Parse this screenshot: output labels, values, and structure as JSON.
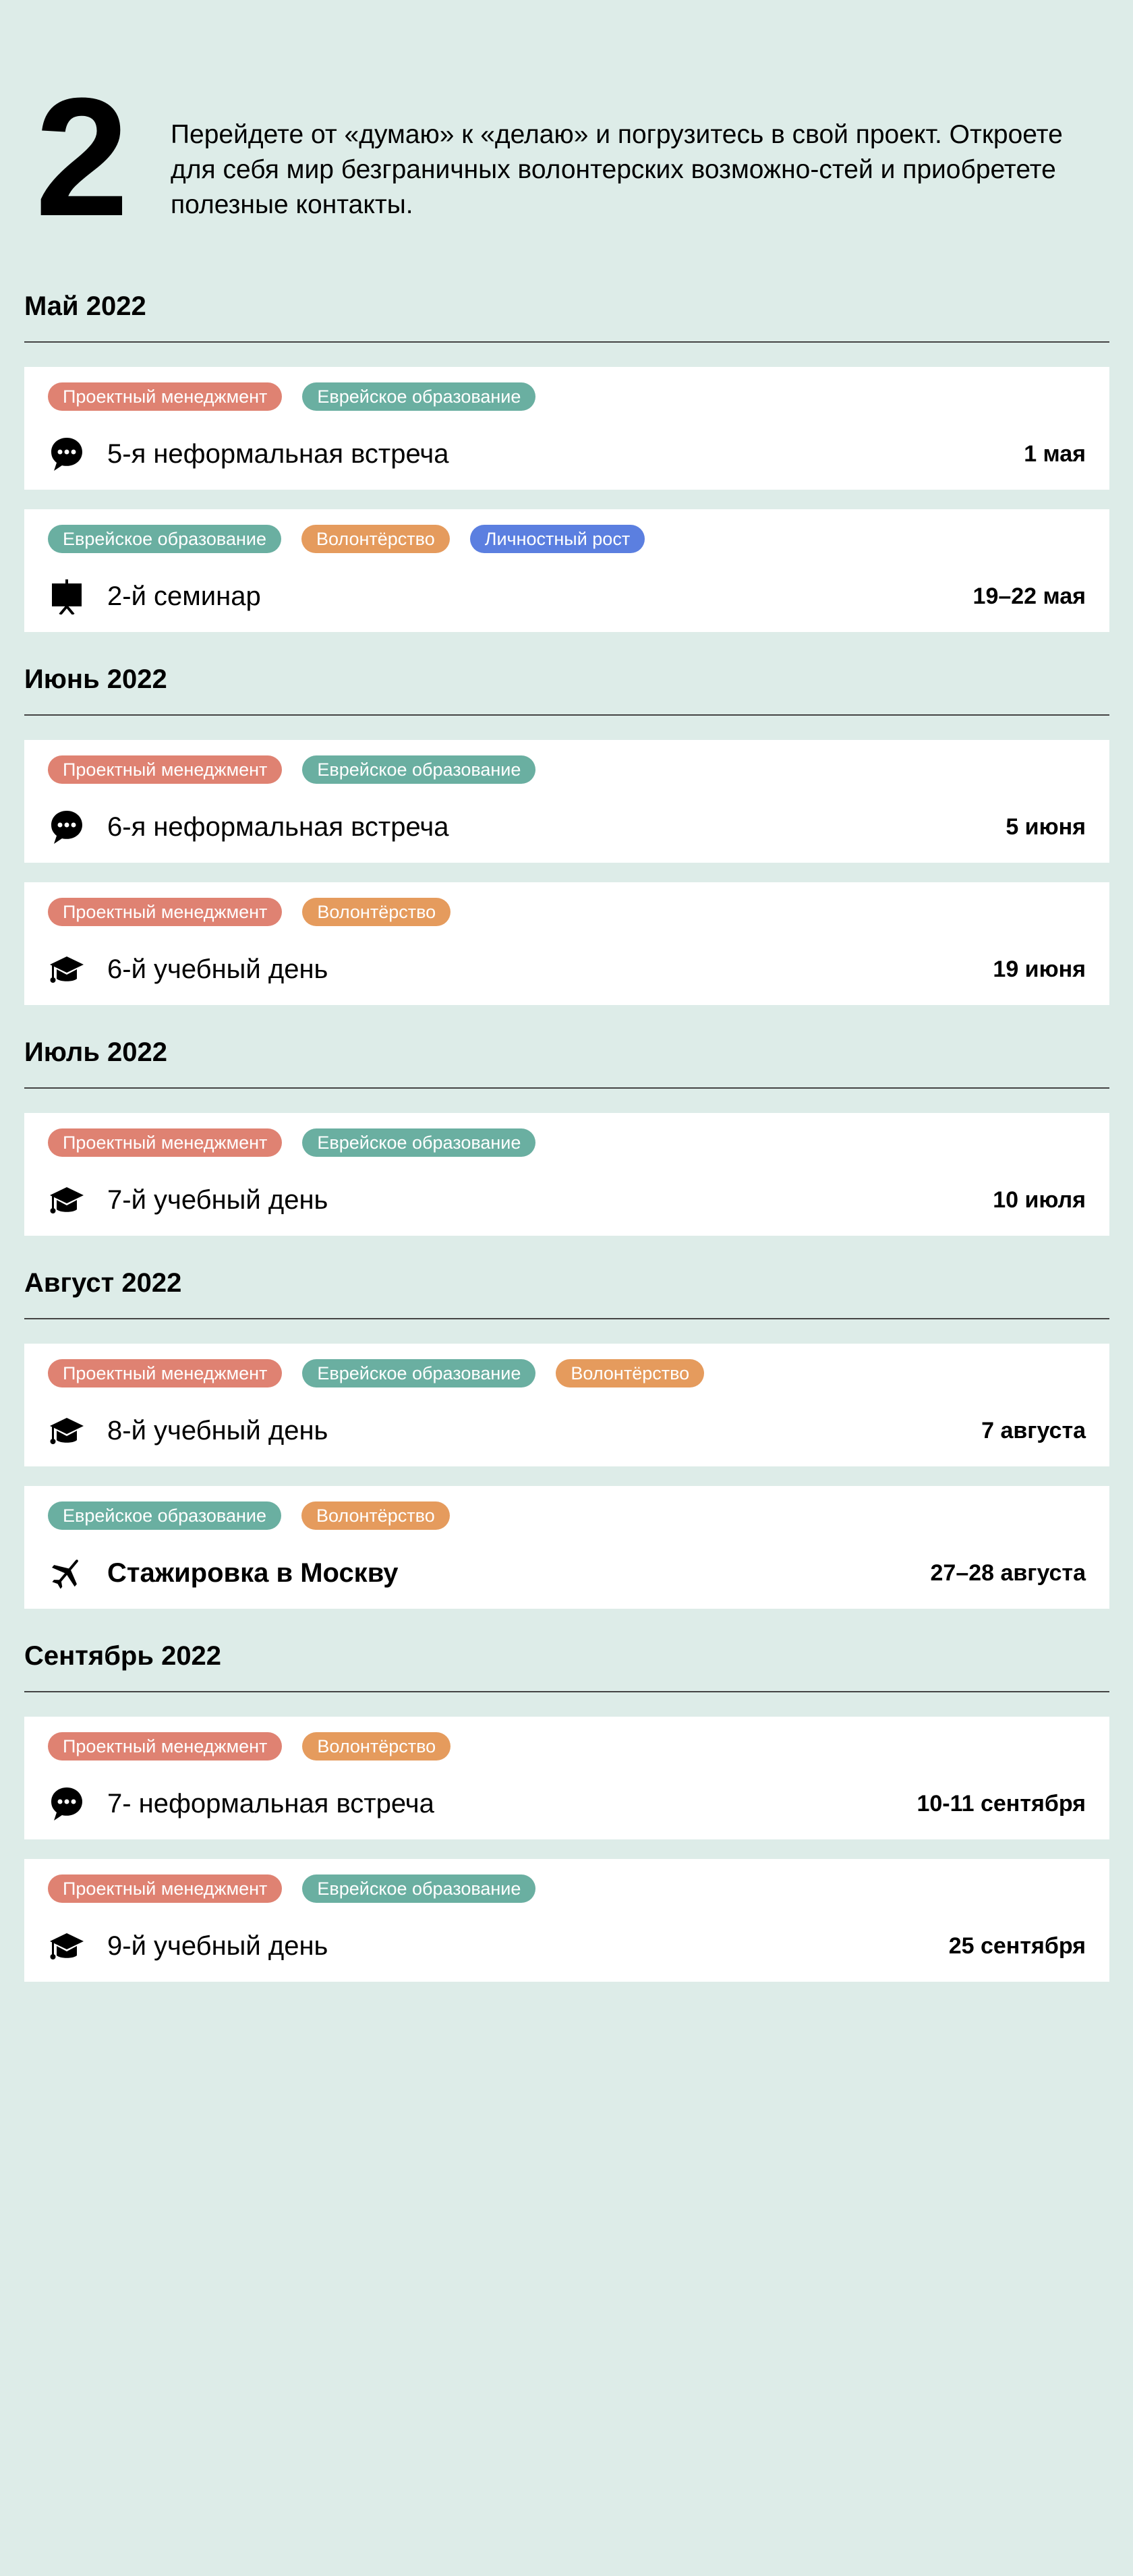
{
  "step_number": "2",
  "intro_text": "Перейдете от «думаю» к «делаю» и погрузитесь в свой проект. Откроете для себя мир безграничных волонтерских возможно-стей и приобретете полезные контакты.",
  "colors": {
    "background": "#ddece8",
    "tag_project_management": "#df8272",
    "tag_jewish_education": "#6aafa1",
    "tag_volunteering": "#e59b5d",
    "tag_personal_growth": "#5b7fe0"
  },
  "months": [
    {
      "title": "Май 2022",
      "events": [
        {
          "tags": [
            {
              "label": "Проектный менеджмент",
              "color": "#df8272"
            },
            {
              "label": "Еврейское образование",
              "color": "#6aafa1"
            }
          ],
          "icon": "chat-bubble-icon",
          "title": "5-я неформальная встреча",
          "date": "1 мая",
          "bold": false
        },
        {
          "tags": [
            {
              "label": "Еврейское образование",
              "color": "#6aafa1"
            },
            {
              "label": "Волонтёрство",
              "color": "#e59b5d"
            },
            {
              "label": "Личностный рост",
              "color": "#5b7fe0"
            }
          ],
          "icon": "presentation-board-icon",
          "title": "2-й семинар",
          "date": "19–22 мая",
          "bold": false
        }
      ]
    },
    {
      "title": "Июнь 2022",
      "events": [
        {
          "tags": [
            {
              "label": "Проектный менеджмент",
              "color": "#df8272"
            },
            {
              "label": "Еврейское образование",
              "color": "#6aafa1"
            }
          ],
          "icon": "chat-bubble-icon",
          "title": "6-я неформальная встреча",
          "date": "5 июня",
          "bold": false
        },
        {
          "tags": [
            {
              "label": "Проектный менеджмент",
              "color": "#df8272"
            },
            {
              "label": "Волонтёрство",
              "color": "#e59b5d"
            }
          ],
          "icon": "graduation-cap-icon",
          "title": "6-й учебный день",
          "date": "19 июня",
          "bold": false
        }
      ]
    },
    {
      "title": "Июль 2022",
      "events": [
        {
          "tags": [
            {
              "label": "Проектный менеджмент",
              "color": "#df8272"
            },
            {
              "label": "Еврейское образование",
              "color": "#6aafa1"
            }
          ],
          "icon": "graduation-cap-icon",
          "title": "7-й учебный день",
          "date": "10 июля",
          "bold": false
        }
      ]
    },
    {
      "title": "Август 2022",
      "events": [
        {
          "tags": [
            {
              "label": "Проектный менеджмент",
              "color": "#df8272"
            },
            {
              "label": "Еврейское образование",
              "color": "#6aafa1"
            },
            {
              "label": "Волонтёрство",
              "color": "#e59b5d"
            }
          ],
          "icon": "graduation-cap-icon",
          "title": "8-й учебный день",
          "date": "7 августа",
          "bold": false
        },
        {
          "tags": [
            {
              "label": "Еврейское образование",
              "color": "#6aafa1"
            },
            {
              "label": "Волонтёрство",
              "color": "#e59b5d"
            }
          ],
          "icon": "airplane-icon",
          "title": "Стажировка в Москву",
          "date": "27–28 августа",
          "bold": true
        }
      ]
    },
    {
      "title": "Сентябрь 2022",
      "events": [
        {
          "tags": [
            {
              "label": "Проектный менеджмент",
              "color": "#df8272"
            },
            {
              "label": "Волонтёрство",
              "color": "#e59b5d"
            }
          ],
          "icon": "chat-bubble-icon",
          "title": "7- неформальная встреча",
          "date": "10-11 сентября",
          "bold": false
        },
        {
          "tags": [
            {
              "label": "Проектный менеджмент",
              "color": "#df8272"
            },
            {
              "label": "Еврейское образование",
              "color": "#6aafa1"
            }
          ],
          "icon": "graduation-cap-icon",
          "title": "9-й учебный день",
          "date": "25 сентября",
          "bold": false
        }
      ]
    }
  ]
}
